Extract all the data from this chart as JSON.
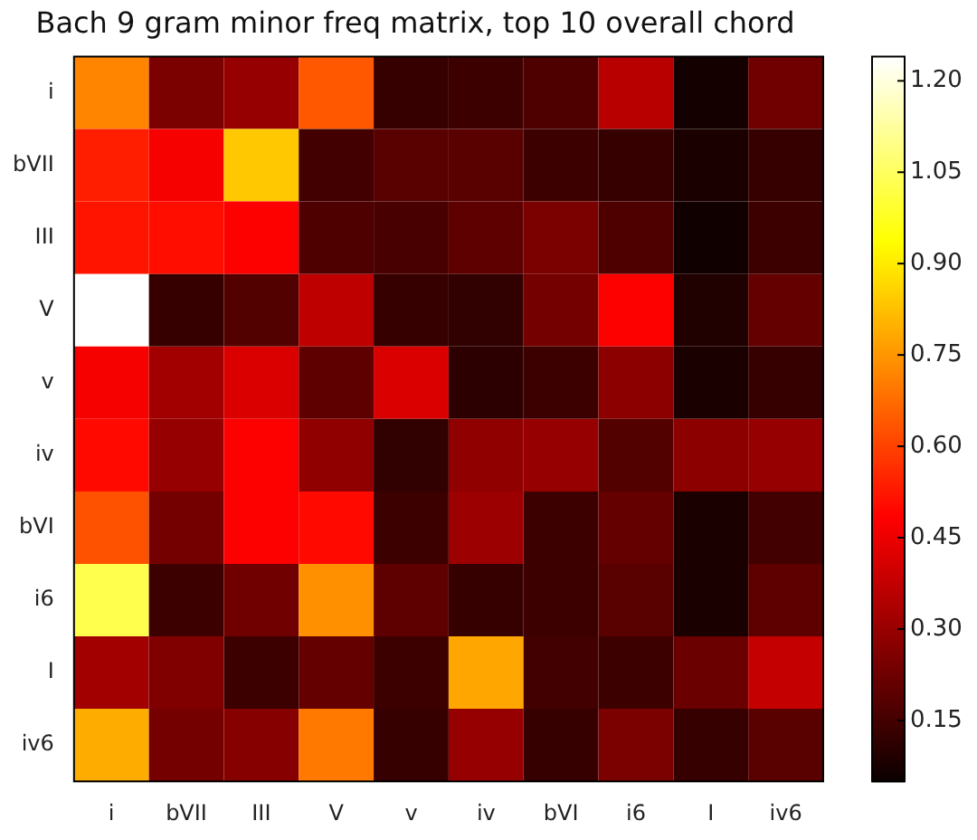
{
  "chart_data": {
    "type": "heatmap",
    "title": "Bach 9 gram minor freq matrix, top 10 overall chord",
    "categories": [
      "i",
      "bVII",
      "III",
      "V",
      "v",
      "iv",
      "bVI",
      "i6",
      "I",
      "iv6"
    ],
    "y_categories": [
      "i",
      "bVII",
      "III",
      "V",
      "v",
      "iv",
      "bVI",
      "i6",
      "I",
      "iv6"
    ],
    "cells": [
      [
        0.72,
        0.25,
        0.3,
        0.64,
        0.13,
        0.14,
        0.17,
        0.36,
        0.07,
        0.23
      ],
      [
        0.54,
        0.47,
        0.84,
        0.15,
        0.19,
        0.19,
        0.14,
        0.13,
        0.08,
        0.13
      ],
      [
        0.52,
        0.51,
        0.48,
        0.17,
        0.16,
        0.2,
        0.25,
        0.17,
        0.06,
        0.14
      ],
      [
        1.24,
        0.13,
        0.18,
        0.37,
        0.13,
        0.12,
        0.24,
        0.48,
        0.09,
        0.21
      ],
      [
        0.47,
        0.32,
        0.42,
        0.2,
        0.42,
        0.11,
        0.14,
        0.28,
        0.08,
        0.13
      ],
      [
        0.5,
        0.3,
        0.48,
        0.29,
        0.12,
        0.29,
        0.3,
        0.18,
        0.28,
        0.3
      ],
      [
        0.63,
        0.24,
        0.48,
        0.5,
        0.14,
        0.31,
        0.14,
        0.21,
        0.08,
        0.15
      ],
      [
        1.03,
        0.14,
        0.23,
        0.74,
        0.2,
        0.13,
        0.14,
        0.19,
        0.08,
        0.2
      ],
      [
        0.32,
        0.26,
        0.14,
        0.21,
        0.14,
        0.78,
        0.15,
        0.14,
        0.22,
        0.38
      ],
      [
        0.79,
        0.24,
        0.27,
        0.7,
        0.13,
        0.3,
        0.13,
        0.25,
        0.13,
        0.19
      ]
    ],
    "clim": [
      0.05,
      1.24
    ],
    "cticks": [
      {
        "value": 0.15,
        "label": "0.15"
      },
      {
        "value": 0.3,
        "label": "0.30"
      },
      {
        "value": 0.45,
        "label": "0.45"
      },
      {
        "value": 0.6,
        "label": "0.60"
      },
      {
        "value": 0.75,
        "label": "0.75"
      },
      {
        "value": 0.9,
        "label": "0.90"
      },
      {
        "value": 1.05,
        "label": "1.05"
      },
      {
        "value": 1.2,
        "label": "1.20"
      }
    ]
  }
}
